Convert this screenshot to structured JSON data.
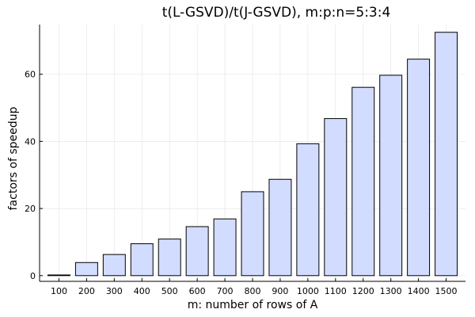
{
  "chart_data": {
    "type": "bar",
    "title": "t(L-GSVD)/t(J-GSVD), m:p:n=5:3:4",
    "xlabel": "m: number of rows of A",
    "ylabel": "factors of speedup",
    "categories": [
      "100",
      "200",
      "300",
      "400",
      "500",
      "600",
      "700",
      "800",
      "900",
      "1000",
      "1100",
      "1200",
      "1300",
      "1400",
      "1500"
    ],
    "values": [
      0.2,
      3.9,
      6.3,
      9.5,
      10.9,
      14.6,
      16.9,
      25.0,
      28.7,
      39.3,
      46.8,
      56.1,
      59.7,
      64.5,
      72.5
    ],
    "ylim": [
      -1.7,
      74.8
    ],
    "yticks": [
      0,
      20,
      40,
      60
    ],
    "grid": true,
    "legend": "none",
    "bar_color": "#d2dcff",
    "bar_edge_color": "#000000"
  }
}
